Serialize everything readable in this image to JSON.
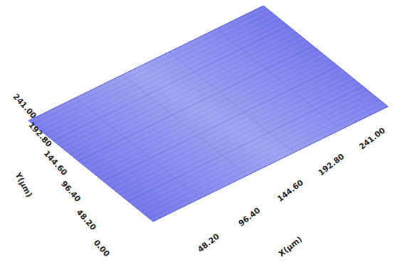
{
  "chart_data": {
    "type": "surface",
    "x_label": "X(μm)",
    "y_label": "Y(μm)",
    "color": "#5c60e6",
    "grid": true,
    "xlim": [
      0,
      241
    ],
    "ylim": [
      0,
      241
    ],
    "xticks": [
      {
        "value": 48.2,
        "label": "48.20"
      },
      {
        "value": 96.4,
        "label": "96.40"
      },
      {
        "value": 144.6,
        "label": "144.60"
      },
      {
        "value": 192.8,
        "label": "192.80"
      },
      {
        "value": 241,
        "label": "241.00"
      }
    ],
    "yticks": [
      {
        "value": 0,
        "label": "0.00"
      },
      {
        "value": 48.2,
        "label": "48.20"
      },
      {
        "value": 96.4,
        "label": "96.40"
      },
      {
        "value": 144.6,
        "label": "144.60"
      },
      {
        "value": 192.8,
        "label": "192.80"
      },
      {
        "value": 241,
        "label": "241.00"
      }
    ]
  }
}
